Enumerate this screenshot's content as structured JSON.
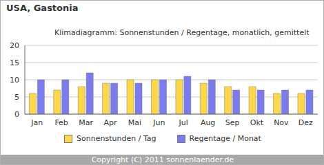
{
  "chart_data": {
    "type": "bar",
    "title": "USA, Gastonia",
    "subtitle": "Klimadiagramm: Sonnenstunden / Regentage, monatlich, gemittelt",
    "categories": [
      "Jan",
      "Feb",
      "Mar",
      "Apr",
      "Mai",
      "Jun",
      "Jul",
      "Aug",
      "Sep",
      "Okt",
      "Nov",
      "Dez"
    ],
    "series": [
      {
        "name": "Sonnenstunden / Tag",
        "color": "#ffd84a",
        "values": [
          6,
          7,
          8,
          9,
          10,
          10,
          10,
          9,
          8,
          8,
          6,
          6
        ]
      },
      {
        "name": "Regentage / Monat",
        "color": "#7b7bf0",
        "values": [
          10,
          10,
          12,
          9,
          9,
          10,
          11,
          10,
          7,
          7,
          7,
          7
        ]
      }
    ],
    "ylim": [
      0,
      20
    ],
    "yticks": [
      0,
      5,
      10,
      15,
      20
    ],
    "grid": true,
    "legend": "bottom",
    "annotations": [
      "Copyright (C) 2011 sonnenlaender.de"
    ]
  }
}
